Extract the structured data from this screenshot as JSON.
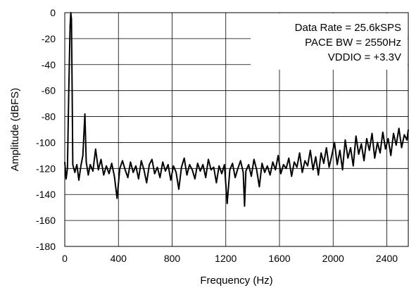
{
  "chart_data": {
    "type": "line",
    "xlabel": "Frequency (Hz)",
    "ylabel": "Amplitude (dBFS)",
    "xlim": [
      0,
      2560
    ],
    "ylim": [
      -180,
      0
    ],
    "xticks": [
      0,
      400,
      800,
      1200,
      1600,
      2000,
      2400
    ],
    "yticks": [
      0,
      -20,
      -40,
      -60,
      -80,
      -100,
      -120,
      -140,
      -160,
      -180
    ],
    "grid": true,
    "annotations": [
      "Data Rate = 25.6kSPS",
      "PACE BW = 2550Hz",
      "VDDIO = +3.3V"
    ],
    "series": [
      {
        "color": "#000000",
        "points": [
          [
            0,
            -115
          ],
          [
            10,
            -128
          ],
          [
            20,
            -120
          ],
          [
            30,
            -60
          ],
          [
            40,
            -10
          ],
          [
            45,
            0
          ],
          [
            50,
            -5
          ],
          [
            55,
            -60
          ],
          [
            60,
            -117
          ],
          [
            75,
            -123
          ],
          [
            90,
            -117
          ],
          [
            105,
            -129
          ],
          [
            120,
            -118
          ],
          [
            135,
            -110
          ],
          [
            150,
            -78
          ],
          [
            160,
            -115
          ],
          [
            175,
            -125
          ],
          [
            190,
            -117
          ],
          [
            210,
            -122
          ],
          [
            230,
            -105
          ],
          [
            250,
            -121
          ],
          [
            270,
            -113
          ],
          [
            290,
            -125
          ],
          [
            310,
            -118
          ],
          [
            330,
            -124
          ],
          [
            350,
            -116
          ],
          [
            370,
            -126
          ],
          [
            390,
            -143
          ],
          [
            410,
            -120
          ],
          [
            430,
            -114
          ],
          [
            450,
            -121
          ],
          [
            470,
            -127
          ],
          [
            490,
            -115
          ],
          [
            510,
            -123
          ],
          [
            530,
            -118
          ],
          [
            550,
            -128
          ],
          [
            570,
            -114
          ],
          [
            590,
            -121
          ],
          [
            610,
            -131
          ],
          [
            630,
            -117
          ],
          [
            650,
            -113
          ],
          [
            670,
            -124
          ],
          [
            690,
            -119
          ],
          [
            710,
            -127
          ],
          [
            730,
            -115
          ],
          [
            750,
            -122
          ],
          [
            770,
            -117
          ],
          [
            790,
            -129
          ],
          [
            810,
            -118
          ],
          [
            830,
            -123
          ],
          [
            850,
            -136
          ],
          [
            870,
            -119
          ],
          [
            890,
            -112
          ],
          [
            910,
            -125
          ],
          [
            930,
            -117
          ],
          [
            950,
            -121
          ],
          [
            970,
            -128
          ],
          [
            990,
            -116
          ],
          [
            1010,
            -122
          ],
          [
            1030,
            -117
          ],
          [
            1050,
            -127
          ],
          [
            1070,
            -113
          ],
          [
            1090,
            -121
          ],
          [
            1110,
            -119
          ],
          [
            1130,
            -131
          ],
          [
            1150,
            -118
          ],
          [
            1170,
            -124
          ],
          [
            1190,
            -117
          ],
          [
            1210,
            -147
          ],
          [
            1230,
            -121
          ],
          [
            1250,
            -116
          ],
          [
            1270,
            -127
          ],
          [
            1290,
            -120
          ],
          [
            1310,
            -114
          ],
          [
            1330,
            -123
          ],
          [
            1340,
            -149
          ],
          [
            1350,
            -122
          ],
          [
            1370,
            -117
          ],
          [
            1390,
            -126
          ],
          [
            1410,
            -113
          ],
          [
            1430,
            -121
          ],
          [
            1450,
            -134
          ],
          [
            1470,
            -116
          ],
          [
            1490,
            -123
          ],
          [
            1510,
            -118
          ],
          [
            1530,
            -125
          ],
          [
            1550,
            -115
          ],
          [
            1570,
            -121
          ],
          [
            1590,
            -110
          ],
          [
            1610,
            -124
          ],
          [
            1630,
            -117
          ],
          [
            1650,
            -120
          ],
          [
            1670,
            -112
          ],
          [
            1690,
            -126
          ],
          [
            1710,
            -115
          ],
          [
            1730,
            -119
          ],
          [
            1750,
            -108
          ],
          [
            1770,
            -123
          ],
          [
            1790,
            -114
          ],
          [
            1810,
            -118
          ],
          [
            1830,
            -106
          ],
          [
            1850,
            -121
          ],
          [
            1870,
            -111
          ],
          [
            1890,
            -125
          ],
          [
            1910,
            -108
          ],
          [
            1930,
            -116
          ],
          [
            1950,
            -104
          ],
          [
            1970,
            -119
          ],
          [
            1990,
            -110
          ],
          [
            2010,
            -100
          ],
          [
            2030,
            -117
          ],
          [
            2050,
            -106
          ],
          [
            2070,
            -121
          ],
          [
            2090,
            -98
          ],
          [
            2110,
            -112
          ],
          [
            2130,
            -104
          ],
          [
            2150,
            -118
          ],
          [
            2170,
            -95
          ],
          [
            2190,
            -109
          ],
          [
            2210,
            -101
          ],
          [
            2230,
            -114
          ],
          [
            2250,
            -97
          ],
          [
            2270,
            -106
          ],
          [
            2290,
            -93
          ],
          [
            2310,
            -112
          ],
          [
            2330,
            -100
          ],
          [
            2350,
            -108
          ],
          [
            2370,
            -92
          ],
          [
            2390,
            -105
          ],
          [
            2410,
            -97
          ],
          [
            2430,
            -110
          ],
          [
            2450,
            -93
          ],
          [
            2470,
            -102
          ],
          [
            2490,
            -89
          ],
          [
            2510,
            -104
          ],
          [
            2530,
            -94
          ],
          [
            2550,
            -98
          ],
          [
            2560,
            -90
          ]
        ]
      }
    ]
  }
}
